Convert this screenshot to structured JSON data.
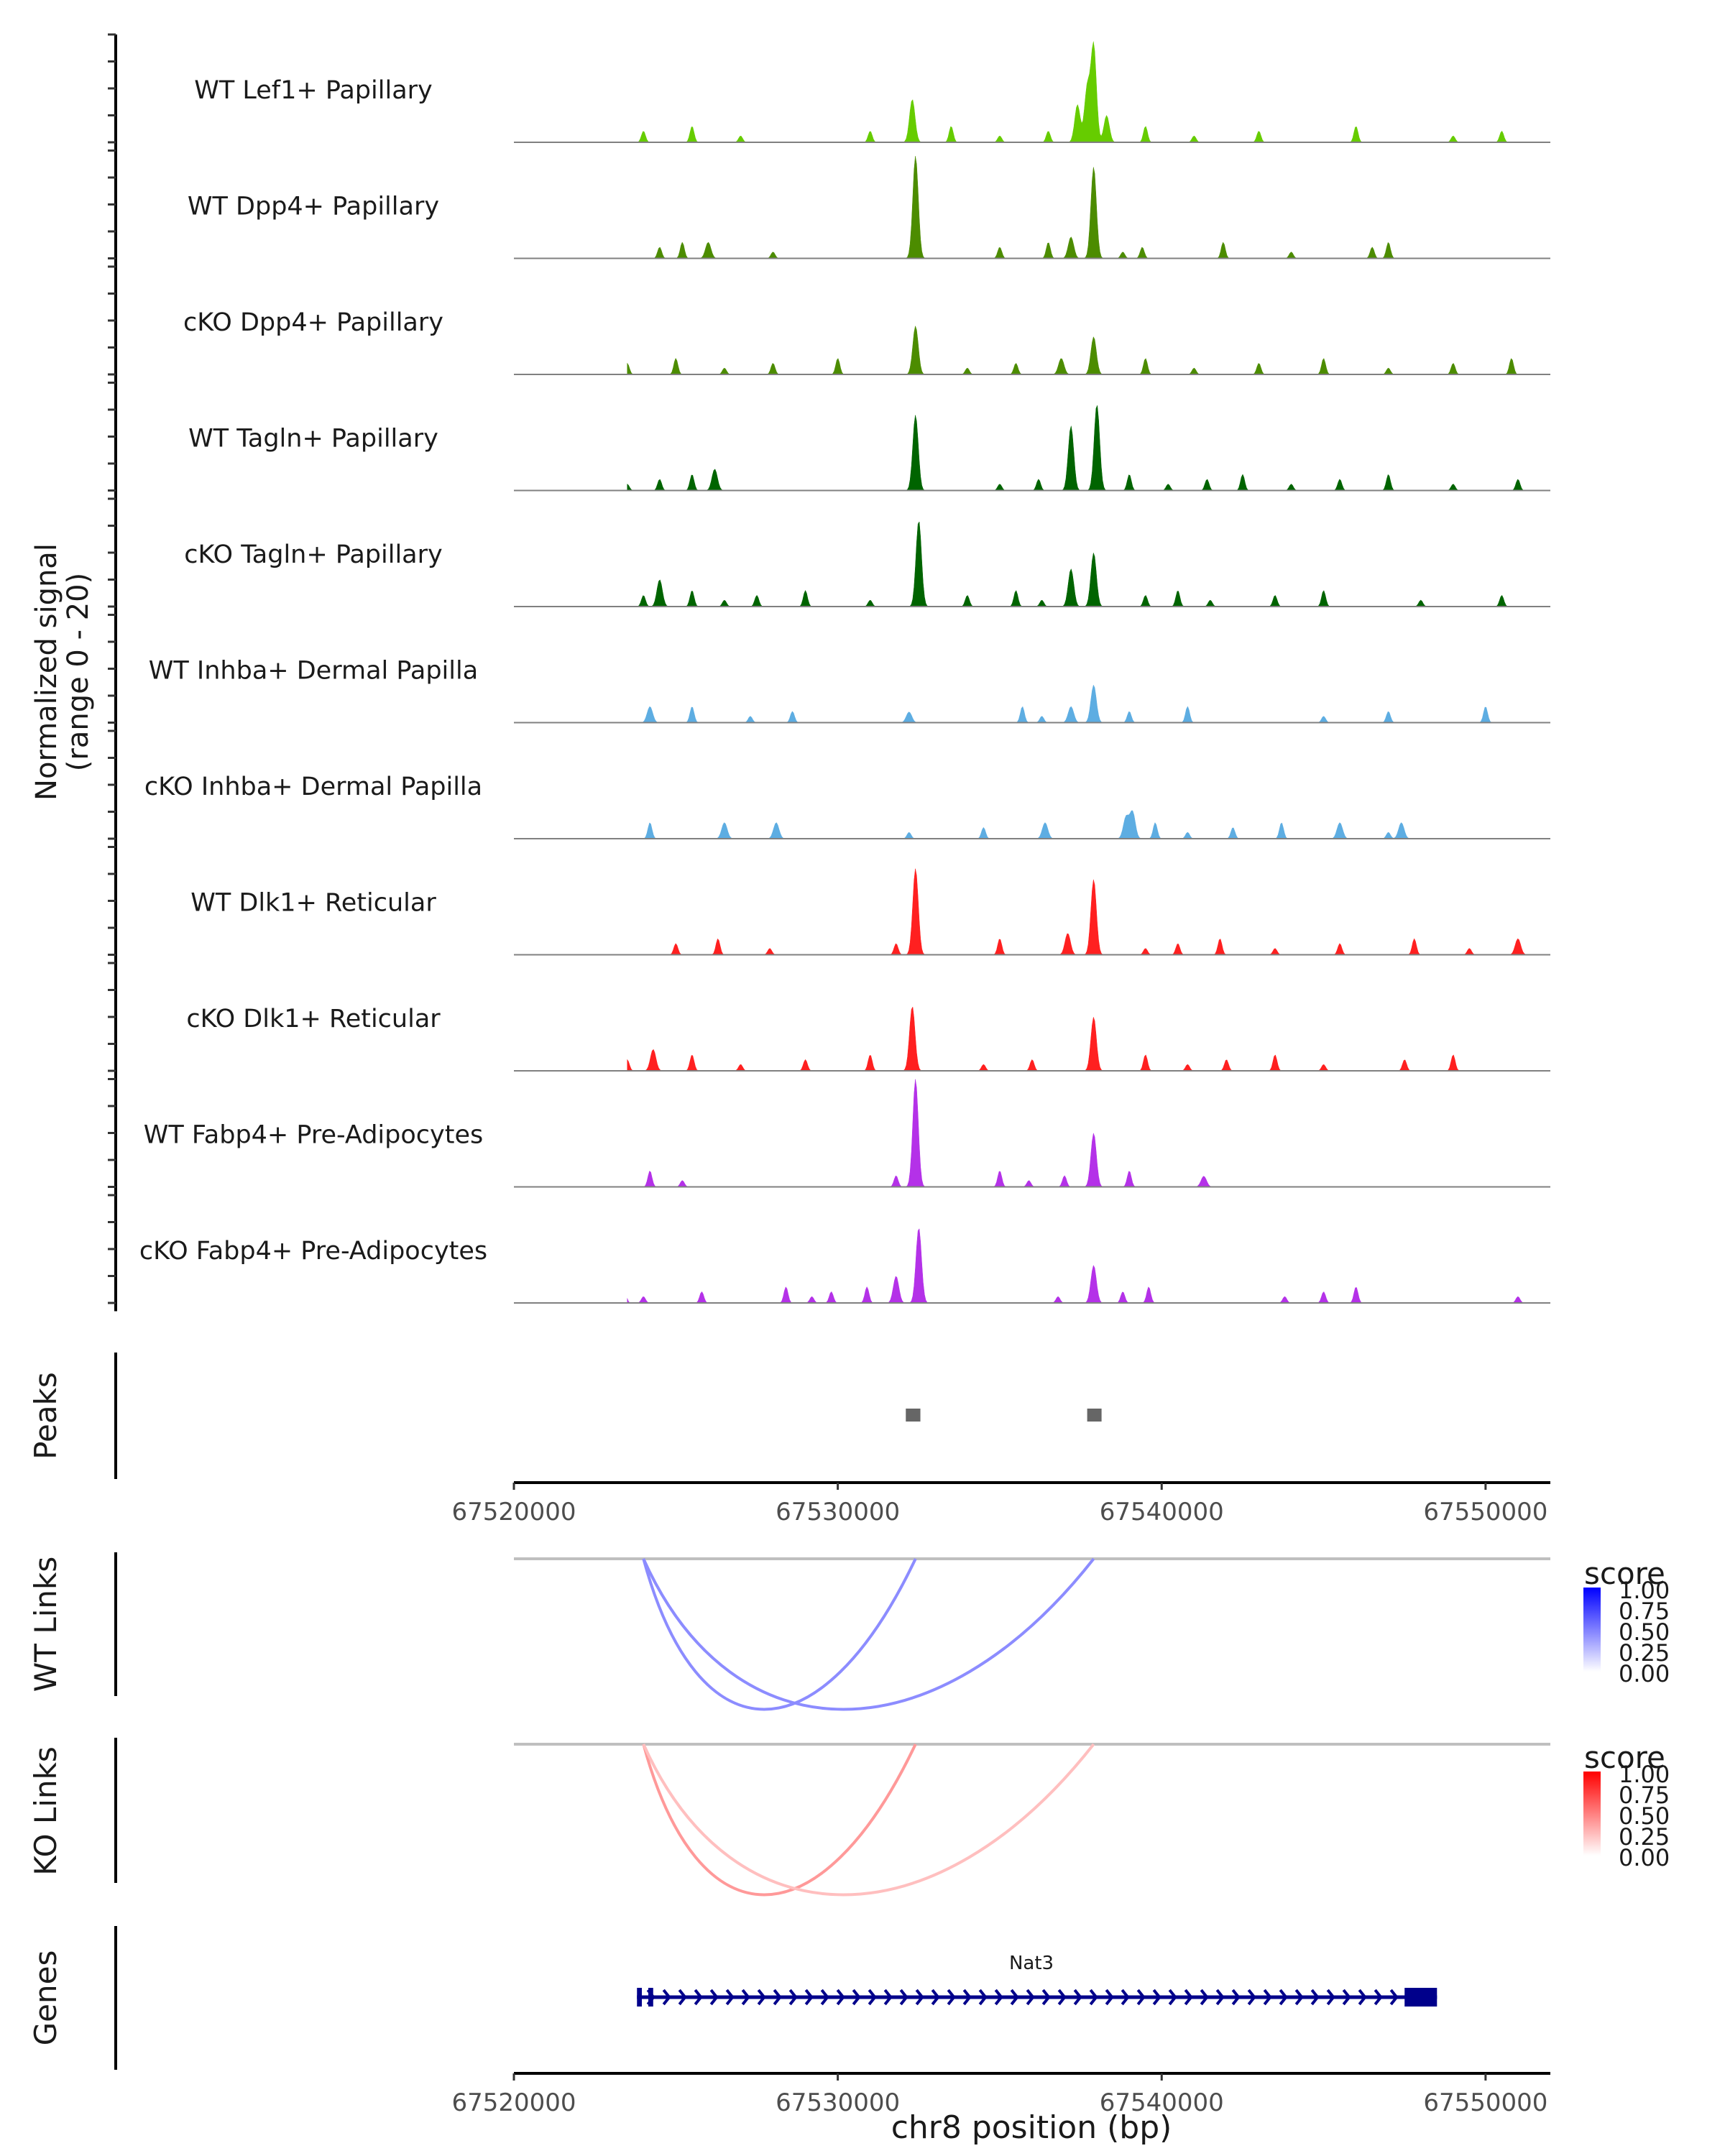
{
  "chart_data": {
    "type": "area",
    "title": "",
    "chromosome": "chr8",
    "xlabel": "chr8 position (bp)",
    "xlim": [
      67520000,
      67552000
    ],
    "x_ticks": [
      67520000,
      67530000,
      67540000,
      67550000
    ],
    "x_tick_labels": [
      "67520000",
      "67530000",
      "67540000",
      "67550000"
    ],
    "coverage": {
      "ylabel_line1": "Normalized signal",
      "ylabel_line2": "(range 0 - 20)",
      "ylim": [
        0,
        20
      ],
      "tracks": [
        {
          "name": "WT Lef1+ Papillary",
          "color": "#66CC00",
          "peaks": [
            [
              67532300,
              8
            ],
            [
              67537400,
              7
            ],
            [
              67537700,
              10
            ],
            [
              67537900,
              18
            ],
            [
              67538300,
              5
            ]
          ],
          "background": [
            67522000,
            67524000,
            67525500,
            67527000,
            67531000,
            67533500,
            67535000,
            67536500,
            67539500,
            67541000,
            67543000,
            67546000,
            67549000,
            67550500
          ]
        },
        {
          "name": "WT Dpp4+ Papillary",
          "color": "#4C8C00",
          "peaks": [
            [
              67532400,
              19
            ],
            [
              67537900,
              17
            ],
            [
              67537200,
              4
            ],
            [
              67526000,
              3
            ]
          ],
          "background": [
            67522100,
            67524500,
            67525200,
            67528000,
            67535000,
            67536500,
            67538800,
            67539400,
            67541900,
            67544000,
            67546500,
            67547000
          ]
        },
        {
          "name": "cKO Dpp4+ Papillary",
          "color": "#4C8C00",
          "peaks": [
            [
              67532400,
              9
            ],
            [
              67537900,
              7
            ],
            [
              67536900,
              3
            ]
          ],
          "background": [
            67522000,
            67523500,
            67525000,
            67526500,
            67528000,
            67530000,
            67534000,
            67535500,
            67539500,
            67541000,
            67543000,
            67545000,
            67547000,
            67549000,
            67550800
          ]
        },
        {
          "name": "WT Tagln+ Papillary",
          "color": "#006400",
          "peaks": [
            [
              67532400,
              14
            ],
            [
              67537200,
              12
            ],
            [
              67538000,
              16
            ],
            [
              67526200,
              4
            ]
          ],
          "background": [
            67523500,
            67524500,
            67525500,
            67535000,
            67536200,
            67539000,
            67540200,
            67541400,
            67542500,
            67544000,
            67545500,
            67547000,
            67549000,
            67551000
          ]
        },
        {
          "name": "cKO Tagln+ Papillary",
          "color": "#006400",
          "peaks": [
            [
              67532500,
              16
            ],
            [
              67537900,
              10
            ],
            [
              67537200,
              7
            ],
            [
              67524500,
              5
            ]
          ],
          "background": [
            67523000,
            67524000,
            67525500,
            67526500,
            67527500,
            67529000,
            67531000,
            67534000,
            67535500,
            67536300,
            67539500,
            67540500,
            67541500,
            67543500,
            67545000,
            67548000,
            67550500
          ]
        },
        {
          "name": "WT Inhba+ Dermal Papilla",
          "color": "#5DADE2",
          "peaks": [
            [
              67537900,
              7
            ],
            [
              67537200,
              3
            ],
            [
              67524200,
              3
            ],
            [
              67532200,
              2
            ]
          ],
          "background": [
            67521800,
            67523300,
            67525500,
            67527300,
            67528600,
            67535700,
            67536300,
            67539000,
            67540800,
            67545000,
            67547000,
            67550000
          ]
        },
        {
          "name": "cKO Inhba+ Dermal Papilla",
          "color": "#5DADE2",
          "peaks": [
            [
              67539100,
              5
            ],
            [
              67538900,
              4
            ],
            [
              67536400,
              3
            ],
            [
              67545500,
              3
            ],
            [
              67528100,
              3
            ],
            [
              67526500,
              3
            ],
            [
              67547400,
              3
            ]
          ],
          "background": [
            67522200,
            67522600,
            67524200,
            67532200,
            67534500,
            67539800,
            67540800,
            67542200,
            67543700,
            67547000
          ]
        },
        {
          "name": "WT Dlk1+ Reticular",
          "color": "#FF2020",
          "peaks": [
            [
              67532400,
              16
            ],
            [
              67537900,
              14
            ],
            [
              67551000,
              3
            ],
            [
              67537100,
              4
            ]
          ],
          "background": [
            67522300,
            67525000,
            67526300,
            67527900,
            67531800,
            67535000,
            67539500,
            67540500,
            67541800,
            67543500,
            67545500,
            67547800,
            67549500
          ]
        },
        {
          "name": "cKO Dlk1+ Reticular",
          "color": "#FF2020",
          "peaks": [
            [
              67532300,
              12
            ],
            [
              67537900,
              10
            ],
            [
              67524300,
              4
            ]
          ],
          "background": [
            67522200,
            67523500,
            67525500,
            67527000,
            67529000,
            67531000,
            67534500,
            67536000,
            67539500,
            67540800,
            67542000,
            67543500,
            67545000,
            67547500,
            67549000
          ]
        },
        {
          "name": "WT Fabp4+ Pre-Adipocytes",
          "color": "#B431E8",
          "peaks": [
            [
              67532400,
              20
            ],
            [
              67537900,
              10
            ],
            [
              67541300,
              2
            ]
          ],
          "background": [
            67522300,
            67523000,
            67524200,
            67525200,
            67531800,
            67535000,
            67535900,
            67537000,
            67539000
          ]
        },
        {
          "name": "cKO Fabp4+ Pre-Adipocytes",
          "color": "#B431E8",
          "peaks": [
            [
              67532500,
              14
            ],
            [
              67537900,
              7
            ],
            [
              67531800,
              5
            ]
          ],
          "background": [
            67521700,
            67522500,
            67523400,
            67524000,
            67525800,
            67528400,
            67529200,
            67529800,
            67530900,
            67536800,
            67538800,
            67539600,
            67543800,
            67545000,
            67546000,
            67551000
          ]
        }
      ]
    },
    "peaks_track": {
      "label": "Peaks",
      "color": "#666666",
      "regions": [
        [
          67532100,
          67532550
        ],
        [
          67537700,
          67538100
        ]
      ]
    },
    "links": [
      {
        "label": "WT Links",
        "legend_title": "score",
        "legend_ticks": [
          "1.00",
          "0.75",
          "0.50",
          "0.25",
          "0.00"
        ],
        "high_color": "#0000FF",
        "arcs": [
          {
            "start": 67524000,
            "end": 67532400,
            "score": 0.45
          },
          {
            "start": 67524000,
            "end": 67537900,
            "score": 0.45
          }
        ]
      },
      {
        "label": "KO Links",
        "legend_title": "score",
        "legend_ticks": [
          "1.00",
          "0.75",
          "0.50",
          "0.25",
          "0.00"
        ],
        "high_color": "#FF0000",
        "arcs": [
          {
            "start": 67524000,
            "end": 67532400,
            "score": 0.4
          },
          {
            "start": 67524000,
            "end": 67537900,
            "score": 0.25
          }
        ]
      }
    ],
    "genes_track": {
      "label": "Genes",
      "color": "#00008B",
      "genes": [
        {
          "name": "Nat3",
          "start": 67523800,
          "end": 67548500,
          "strand": "+",
          "exons": [
            [
              67523800,
              67523950
            ],
            [
              67524150,
              67524300
            ],
            [
              67547500,
              67548500
            ]
          ]
        }
      ]
    }
  }
}
